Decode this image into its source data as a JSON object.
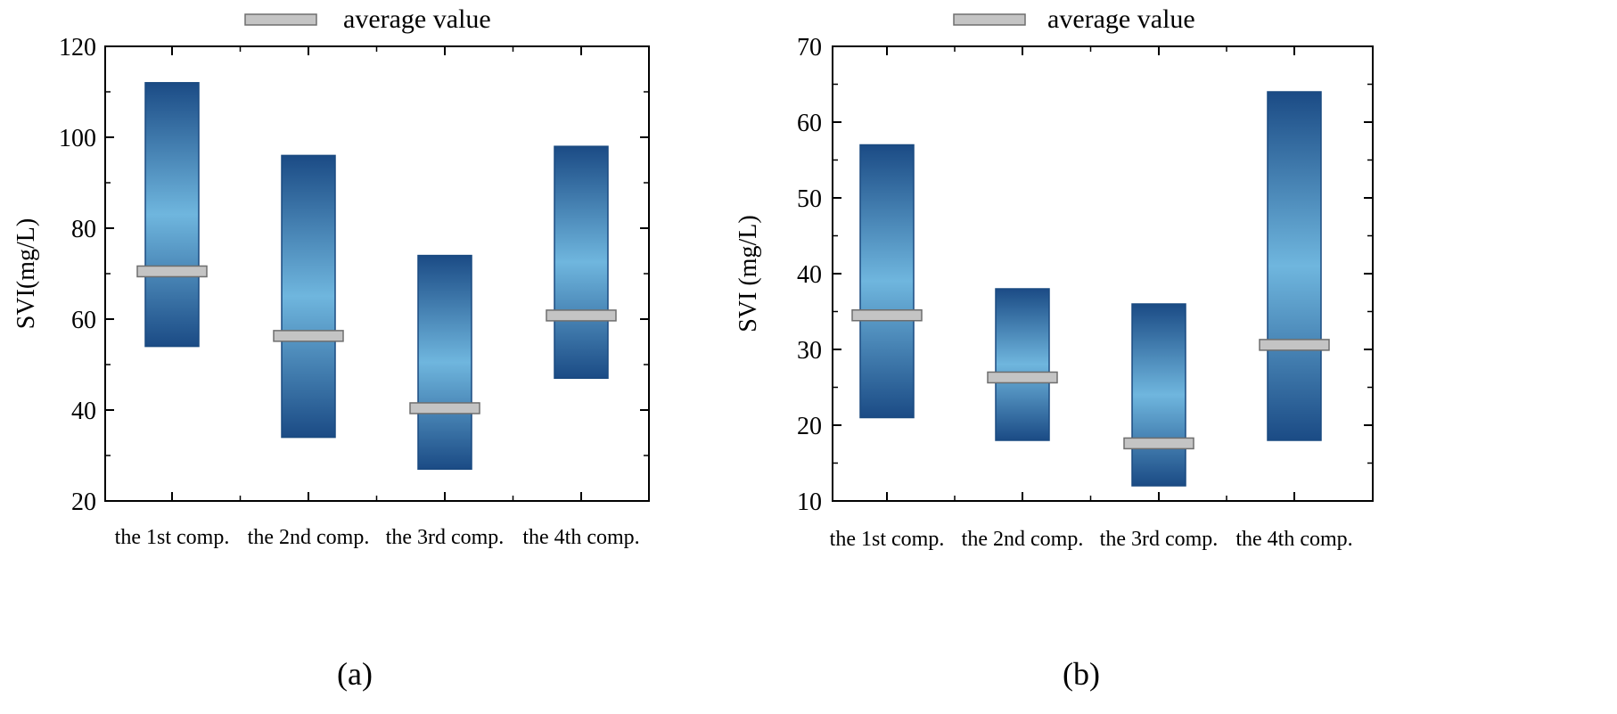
{
  "colors": {
    "bar_edge": "#1a4a80",
    "bar_light": "#6fb6de",
    "bar_dark": "#1b4b85",
    "mean_fill": "#c4c4c4",
    "mean_stroke": "#6e6e6e",
    "axis": "#000000"
  },
  "chart_data": [
    {
      "type": "bar",
      "subtype": "floating-range with mean marker",
      "panel_label": "(a)",
      "legend": "average value",
      "ylabel": "SVI(mg/L)",
      "xlabel": "",
      "ylim": [
        20,
        120
      ],
      "yticks": [
        "20",
        "40",
        "60",
        "80",
        "100",
        "120"
      ],
      "categories": [
        "the 1st comp.",
        "the 2nd comp.",
        "the 3rd comp.",
        "the 4th comp."
      ],
      "series": [
        {
          "name": "min",
          "values": [
            54,
            34,
            27,
            47
          ]
        },
        {
          "name": "max",
          "values": [
            112,
            96,
            74,
            98
          ]
        },
        {
          "name": "average value",
          "values": [
            70.5,
            56.3,
            40.4,
            60.8
          ]
        }
      ]
    },
    {
      "type": "bar",
      "subtype": "floating-range with mean marker",
      "panel_label": "(b)",
      "legend": "average value",
      "ylabel": "SVI (mg/L)",
      "xlabel": "",
      "ylim": [
        10,
        70
      ],
      "yticks": [
        "10",
        "20",
        "30",
        "40",
        "50",
        "60",
        "70"
      ],
      "categories": [
        "the 1st comp.",
        "the 2nd comp.",
        "the 3rd comp.",
        "the 4th comp."
      ],
      "series": [
        {
          "name": "min",
          "values": [
            21,
            18,
            12,
            18
          ]
        },
        {
          "name": "max",
          "values": [
            57,
            38,
            36,
            64
          ]
        },
        {
          "name": "average value",
          "values": [
            34.5,
            26.3,
            17.6,
            30.6
          ]
        }
      ]
    }
  ]
}
